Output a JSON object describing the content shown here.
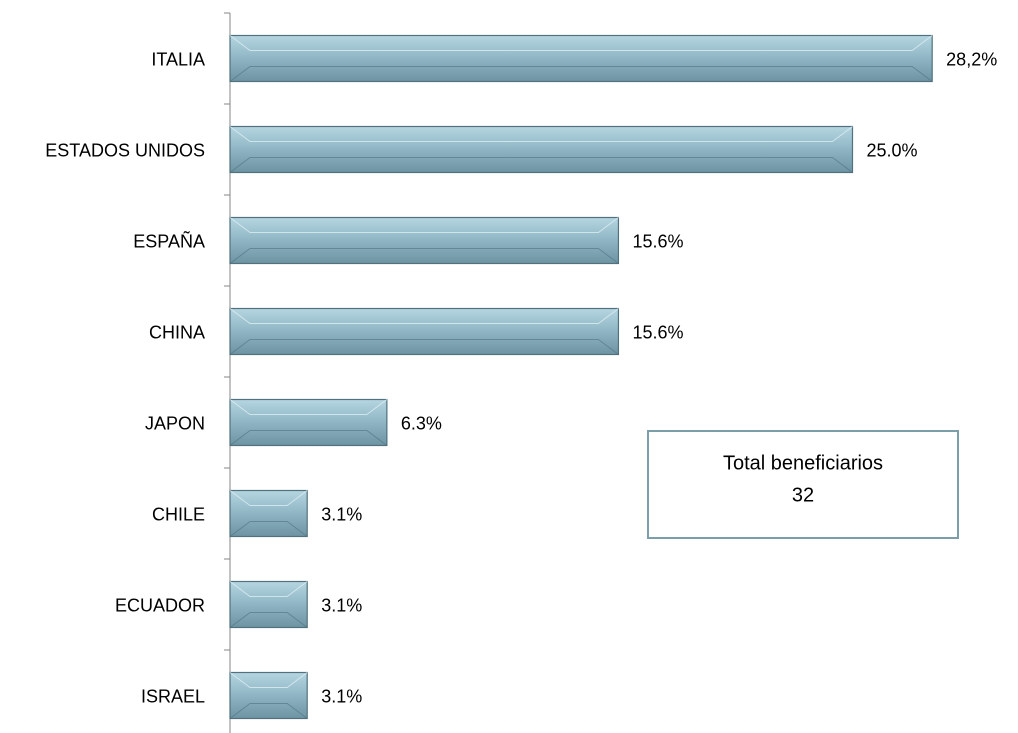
{
  "chart_data": {
    "type": "bar",
    "orientation": "horizontal",
    "categories": [
      "ITALIA",
      "ESTADOS UNIDOS",
      "ESPAÑA",
      "CHINA",
      "JAPON",
      "CHILE",
      "ECUADOR",
      "ISRAEL"
    ],
    "values": [
      28.2,
      25.0,
      15.6,
      15.6,
      6.3,
      3.1,
      3.1,
      3.1
    ],
    "value_labels": [
      "28,2%",
      "25.0%",
      "15.6%",
      "15.6%",
      "6.3%",
      "3.1%",
      "3.1%",
      "3.1%"
    ],
    "color": "#8fb5c4",
    "xlim": [
      0,
      30
    ],
    "annotation": {
      "title": "Total beneficiarios",
      "value": "32"
    }
  }
}
